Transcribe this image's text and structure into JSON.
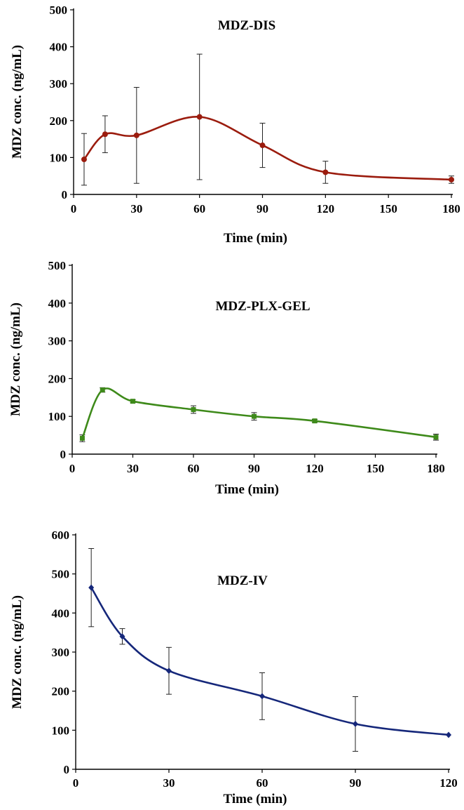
{
  "chart_data": [
    {
      "type": "line",
      "title": "MDZ-DIS",
      "xlabel": "Time (min)",
      "ylabel": "MDZ  conc. (ng/mL)",
      "xlim": [
        0,
        180
      ],
      "ylim": [
        0,
        500
      ],
      "xticks": [
        "0",
        "30",
        "60",
        "90",
        "120",
        "150",
        "180"
      ],
      "yticks": [
        "0",
        "100",
        "200",
        "300",
        "400",
        "500"
      ],
      "grid": false,
      "color": "#9b1c0e",
      "marker": "circle",
      "series": [
        {
          "x": [
            5,
            15,
            30,
            60,
            90,
            120,
            180
          ],
          "values": [
            95,
            163,
            160,
            210,
            133,
            60,
            40
          ],
          "error": [
            70,
            50,
            130,
            170,
            60,
            30,
            10
          ]
        }
      ]
    },
    {
      "type": "line",
      "title": "MDZ-PLX-GEL",
      "xlabel": "Time (min)",
      "ylabel": "MDZ  conc. (ng/mL)",
      "xlim": [
        0,
        180
      ],
      "ylim": [
        0,
        500
      ],
      "xticks": [
        "0",
        "30",
        "60",
        "90",
        "120",
        "150",
        "180"
      ],
      "yticks": [
        "0",
        "100",
        "200",
        "300",
        "400",
        "500"
      ],
      "grid": false,
      "color": "#3e8a1a",
      "marker": "square",
      "series": [
        {
          "x": [
            5,
            15,
            30,
            60,
            90,
            120,
            180
          ],
          "values": [
            42,
            170,
            140,
            118,
            100,
            88,
            45
          ],
          "error": [
            9,
            6,
            4,
            10,
            10,
            4,
            8
          ]
        }
      ]
    },
    {
      "type": "line",
      "title": "MDZ-IV",
      "xlabel": "Time (min)",
      "ylabel": "MDZ  conc. (ng/mL)",
      "xlim": [
        0,
        120
      ],
      "ylim": [
        0,
        600
      ],
      "xticks": [
        "0",
        "30",
        "60",
        "90",
        "120"
      ],
      "yticks": [
        "0",
        "100",
        "200",
        "300",
        "400",
        "500",
        "600"
      ],
      "grid": false,
      "color": "#15277a",
      "marker": "diamond",
      "series": [
        {
          "x": [
            5,
            15,
            30,
            60,
            90,
            120
          ],
          "values": [
            465,
            340,
            252,
            187,
            116,
            88
          ],
          "error": [
            100,
            20,
            60,
            60,
            70,
            0
          ]
        }
      ]
    }
  ]
}
